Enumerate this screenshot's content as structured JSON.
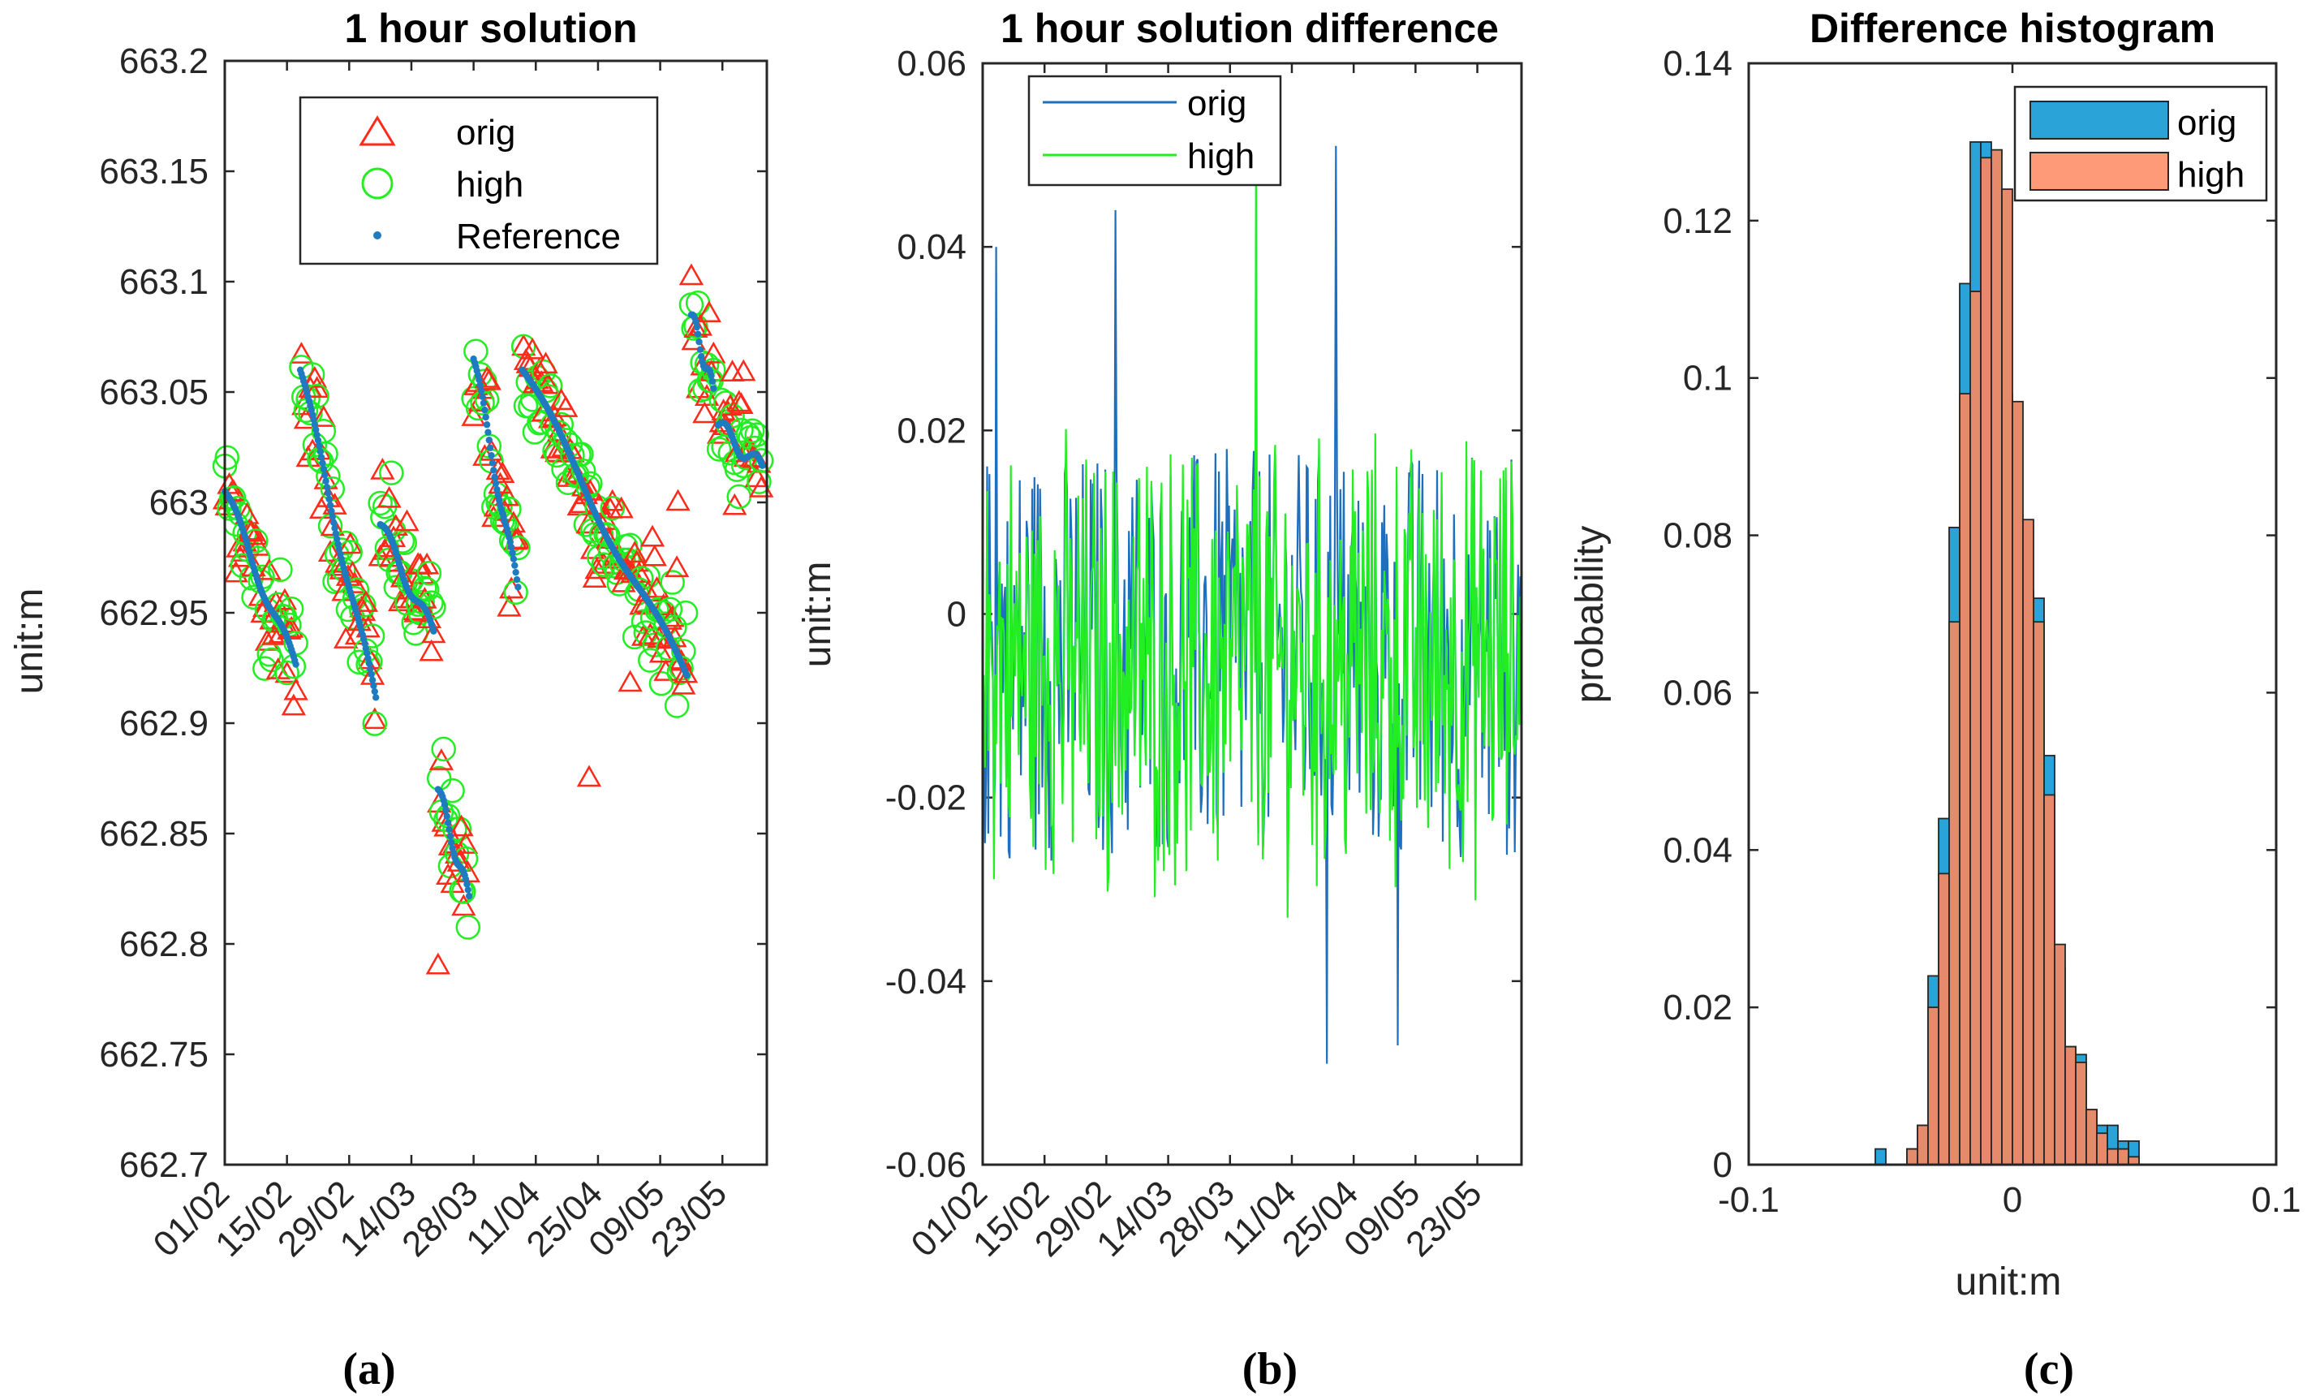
{
  "colors": {
    "orig_marker": "#ff2a1a",
    "high_marker": "#22ee22",
    "reference": "#1f7bc0",
    "diff_orig_line": "#1f6fbf",
    "diff_high_line": "#22ee22",
    "hist_orig_fill": "#2aa4d8",
    "hist_high_fill": "#e58a6a",
    "axis": "#262626"
  },
  "panel_labels": [
    "(a)",
    "(b)",
    "(c)"
  ],
  "chart_data": [
    {
      "type": "scatter",
      "title": "1 hour solution",
      "ylabel": "unit:m",
      "xlabel": "",
      "ylim": [
        662.7,
        663.2
      ],
      "yticks": [
        662.7,
        662.75,
        662.8,
        662.85,
        662.9,
        662.95,
        663,
        663.05,
        663.1,
        663.15,
        663.2
      ],
      "yticklabels": [
        "662.7",
        "662.75",
        "662.8",
        "662.85",
        "662.9",
        "662.95",
        "663",
        "663.05",
        "663.1",
        "663.15",
        "663.2"
      ],
      "xlim_days": [
        0,
        122
      ],
      "xticks_days": [
        0,
        14,
        28,
        42,
        56,
        70,
        84,
        98,
        112
      ],
      "xticklabels": [
        "01/02",
        "15/02",
        "29/02",
        "14/03",
        "28/03",
        "11/04",
        "25/04",
        "09/05",
        "23/05"
      ],
      "legend": [
        "orig",
        "high",
        "Reference"
      ],
      "reference_segments": [
        {
          "days": [
            0,
            16
          ],
          "start": 663.005,
          "end": 662.925
        },
        {
          "days": [
            17,
            34
          ],
          "start": 663.06,
          "end": 662.91
        },
        {
          "days": [
            35,
            47
          ],
          "start": 662.99,
          "end": 662.94
        },
        {
          "days": [
            48,
            55
          ],
          "start": 662.87,
          "end": 662.82
        },
        {
          "days": [
            56,
            66
          ],
          "start": 663.065,
          "end": 662.96
        },
        {
          "days": [
            67,
            104
          ],
          "start": 663.06,
          "end": 662.92
        },
        {
          "days": [
            105,
            110
          ],
          "start": 663.085,
          "end": 663.05
        },
        {
          "days": [
            111,
            121
          ],
          "start": 663.035,
          "end": 663.015
        }
      ],
      "annotated_outliers": [
        {
          "day": 48,
          "value": 662.79
        },
        {
          "day": 82,
          "value": 662.875
        },
        {
          "day": 102,
          "value": 663.0
        }
      ]
    },
    {
      "type": "line",
      "title": "1 hour solution difference",
      "ylabel": "unit:m",
      "xlabel": "",
      "ylim": [
        -0.06,
        0.06
      ],
      "yticks": [
        -0.06,
        -0.04,
        -0.02,
        0,
        0.02,
        0.04,
        0.06
      ],
      "yticklabels": [
        "-0.06",
        "-0.04",
        "-0.02",
        "0",
        "0.02",
        "0.04",
        "0.06"
      ],
      "xlim_days": [
        0,
        122
      ],
      "xticks_days": [
        0,
        14,
        28,
        42,
        56,
        70,
        84,
        98,
        112
      ],
      "xticklabels": [
        "01/02",
        "15/02",
        "29/02",
        "14/03",
        "28/03",
        "11/04",
        "25/04",
        "09/05",
        "23/05"
      ],
      "legend": [
        "orig",
        "high"
      ],
      "series_range": {
        "orig": [
          -0.049,
          0.051
        ],
        "high": [
          -0.038,
          0.052
        ]
      },
      "noted_peaks": [
        {
          "series": "orig",
          "day": 3,
          "value": 0.04
        },
        {
          "series": "orig",
          "day": 30,
          "value": 0.044
        },
        {
          "series": "high",
          "day": 62,
          "value": 0.052
        },
        {
          "series": "orig",
          "day": 80,
          "value": 0.051
        },
        {
          "series": "orig",
          "day": 78,
          "value": -0.049
        },
        {
          "series": "orig",
          "day": 94,
          "value": -0.047
        }
      ]
    },
    {
      "type": "bar",
      "title": "Difference histogram",
      "ylabel": "probability",
      "xlabel": "unit:m",
      "xlim": [
        -0.1,
        0.1
      ],
      "ylim": [
        0,
        0.14
      ],
      "xticks": [
        -0.1,
        0,
        0.1
      ],
      "xticklabels": [
        "-0.1",
        "0",
        "0.1"
      ],
      "yticks": [
        0,
        0.02,
        0.04,
        0.06,
        0.08,
        0.1,
        0.12,
        0.14
      ],
      "yticklabels": [
        "0",
        "0.02",
        "0.04",
        "0.06",
        "0.08",
        "0.1",
        "0.12",
        "0.14"
      ],
      "legend": [
        "orig",
        "high"
      ],
      "series": [
        {
          "name": "orig",
          "bin_width": 0.004,
          "bins": [
            -0.052,
            -0.048,
            -0.044,
            -0.04,
            -0.036,
            -0.032,
            -0.028,
            -0.024,
            -0.02,
            -0.016,
            -0.012,
            -0.008,
            -0.004,
            0.0,
            0.004,
            0.008,
            0.012,
            0.016,
            0.02,
            0.024,
            0.028,
            0.032,
            0.036,
            0.04,
            0.044,
            0.048
          ],
          "values": [
            0.002,
            0.0,
            0.0,
            0.002,
            0.005,
            0.024,
            0.044,
            0.081,
            0.112,
            0.13,
            0.13,
            0.12,
            0.098,
            0.079,
            0.073,
            0.072,
            0.052,
            0.025,
            0.015,
            0.014,
            0.007,
            0.005,
            0.005,
            0.003,
            0.003,
            0.0
          ]
        },
        {
          "name": "high",
          "bin_width": 0.004,
          "bins": [
            -0.044,
            -0.04,
            -0.036,
            -0.032,
            -0.028,
            -0.024,
            -0.02,
            -0.016,
            -0.012,
            -0.008,
            -0.004,
            0.0,
            0.004,
            0.008,
            0.012,
            0.016,
            0.02,
            0.024,
            0.028,
            0.032,
            0.036,
            0.04,
            0.044
          ],
          "values": [
            0.0,
            0.002,
            0.005,
            0.02,
            0.037,
            0.069,
            0.098,
            0.111,
            0.128,
            0.129,
            0.124,
            0.097,
            0.082,
            0.069,
            0.047,
            0.028,
            0.015,
            0.013,
            0.007,
            0.004,
            0.002,
            0.002,
            0.001
          ]
        }
      ]
    }
  ]
}
